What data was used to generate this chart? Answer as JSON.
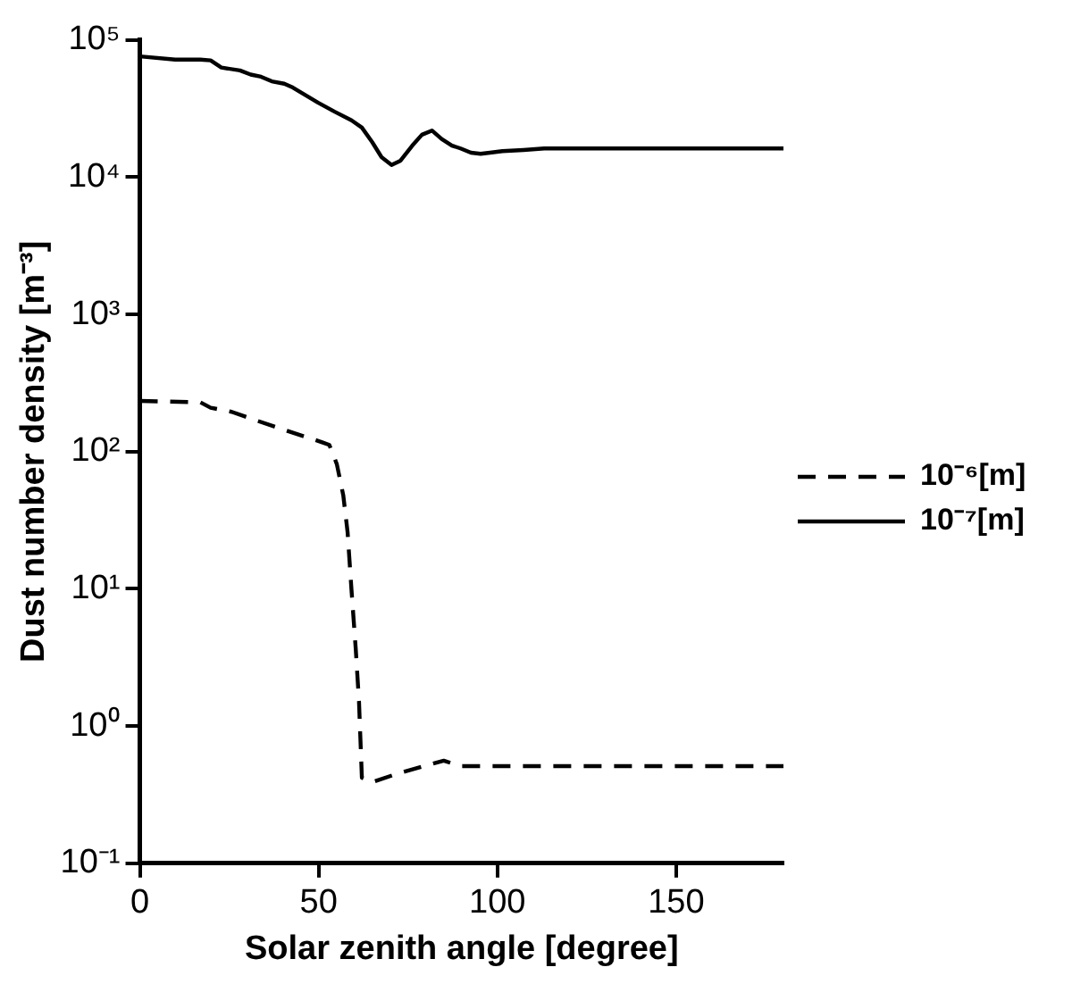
{
  "chart_data": {
    "type": "line",
    "xlabel": "Solar zenith angle [degree]",
    "ylabel": "Dust number density [m⁻³]",
    "log": "y",
    "grid": false,
    "legend": "right",
    "marker": "none",
    "xlim": [
      0,
      180
    ],
    "xticks": [
      0,
      50,
      100,
      150
    ],
    "ylim": [
      0.1,
      100000
    ],
    "yticks": [
      {
        "value": 0.1,
        "label": "10⁻¹"
      },
      {
        "value": 1,
        "label": "10⁰"
      },
      {
        "value": 10,
        "label": "10¹"
      },
      {
        "value": 100,
        "label": "10²"
      },
      {
        "value": 1000,
        "label": "10³"
      },
      {
        "value": 10000,
        "label": "10⁴"
      },
      {
        "value": 100000,
        "label": "10⁵"
      }
    ],
    "series": [
      {
        "name": "10⁻⁶[m]",
        "color": "#000000",
        "line_style": "dashed",
        "x": [
          0,
          16.9,
          19.8,
          25.7,
          32.2,
          41.5,
          51,
          53,
          55.1,
          56.9,
          58.1,
          59.2,
          60.4,
          61.3,
          62.1,
          65,
          72,
          85,
          89.7,
          180
        ],
        "values": [
          234,
          229,
          209,
          195,
          170,
          141,
          117,
          112,
          81,
          48,
          26,
          9.8,
          3.6,
          1.5,
          0.42,
          0.39,
          0.45,
          0.56,
          0.51,
          0.51
        ]
      },
      {
        "name": "10⁻⁷[m]",
        "color": "#000000",
        "line_style": "solid",
        "x": [
          0,
          9.9,
          16.9,
          19.8,
          22.8,
          28,
          31,
          33.9,
          36.9,
          40.4,
          42.8,
          49.8,
          54.5,
          59.2,
          62.1,
          65,
          67.6,
          70.4,
          72.9,
          76.2,
          78.9,
          81.7,
          84.4,
          87.3,
          89.7,
          92.6,
          95.3,
          97.9,
          101.4,
          107.3,
          113.1,
          124.9,
          180
        ],
        "values": [
          76000,
          72000,
          72000,
          71000,
          63000,
          60000,
          56000,
          54000,
          50000,
          48000,
          45000,
          35000,
          30000,
          26000,
          23000,
          18000,
          14000,
          12300,
          13200,
          17000,
          20400,
          21900,
          19000,
          17000,
          16200,
          15100,
          14800,
          15100,
          15500,
          15800,
          16200,
          16200,
          16200
        ]
      }
    ]
  }
}
